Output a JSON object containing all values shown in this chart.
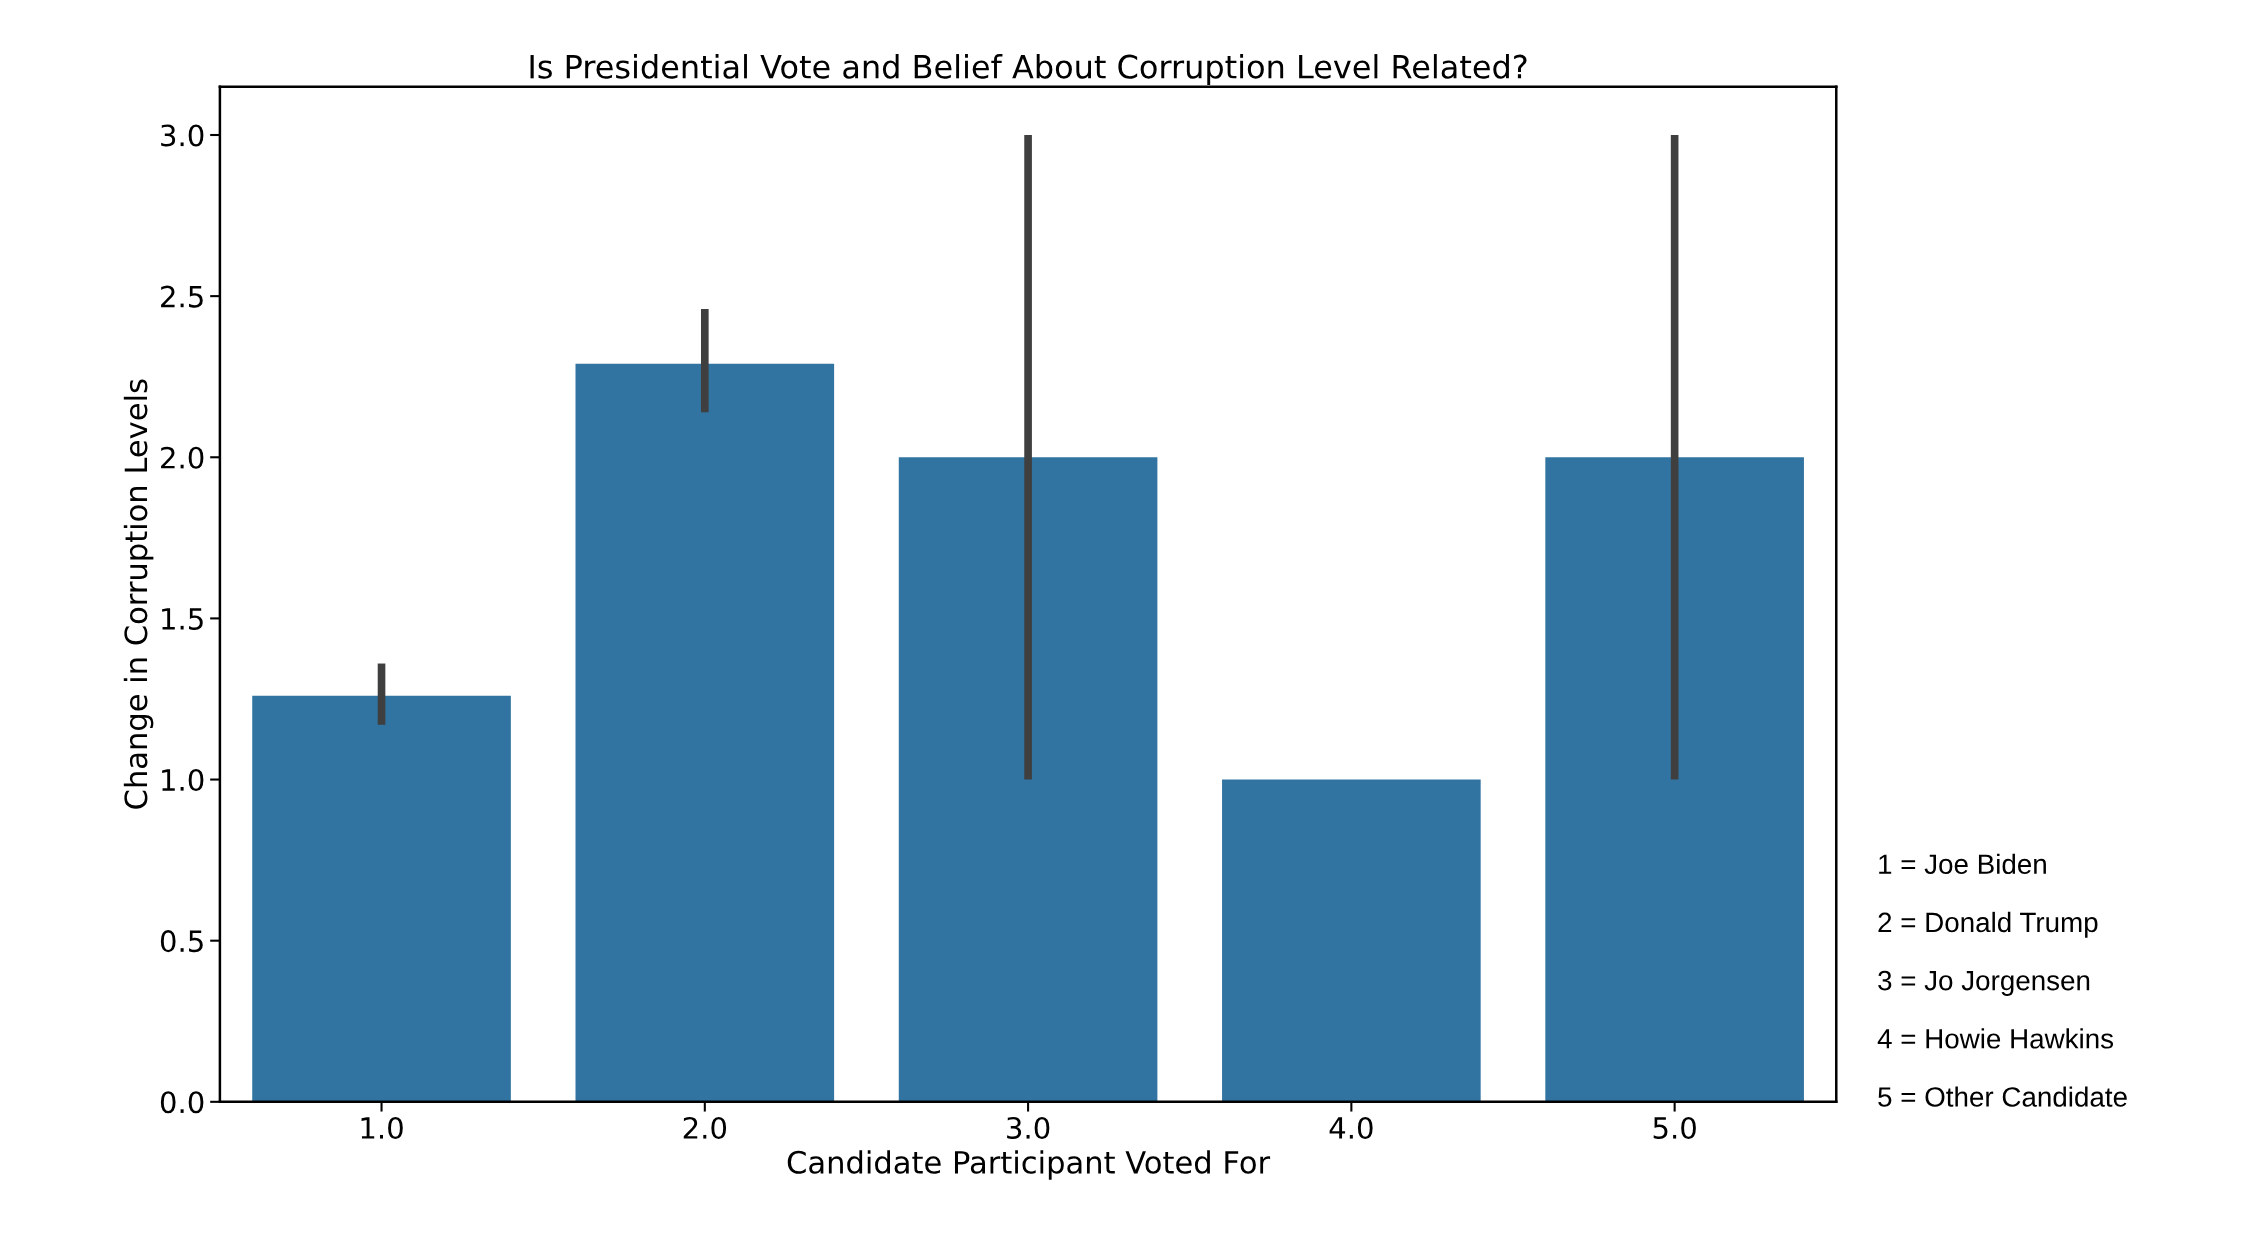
{
  "chart_data": {
    "type": "bar",
    "title": "Is Presidential Vote and Belief About Corruption Level Related?",
    "xlabel": "Candidate Participant Voted For",
    "ylabel": "Change in Corruption Levels",
    "categories": [
      "1.0",
      "2.0",
      "3.0",
      "4.0",
      "5.0"
    ],
    "values": [
      1.26,
      2.29,
      2.0,
      1.0,
      2.0
    ],
    "errors": [
      [
        1.17,
        1.36
      ],
      [
        2.14,
        2.46
      ],
      [
        1.0,
        3.0
      ],
      null,
      [
        1.0,
        3.0
      ]
    ],
    "color": "#3274a1",
    "ylim": [
      0,
      3.15
    ],
    "yticks": [
      {
        "value": 0,
        "label": "0.0"
      },
      {
        "value": 0.5,
        "label": "0.5"
      },
      {
        "value": 1,
        "label": "1.0"
      },
      {
        "value": 1.5,
        "label": "1.5"
      },
      {
        "value": 2,
        "label": "2.0"
      },
      {
        "value": 2.5,
        "label": "2.5"
      },
      {
        "value": 3,
        "label": "3.0"
      }
    ],
    "grid": false,
    "legend": false,
    "annotations": [
      "1 = Joe Biden",
      "2 = Donald Trump",
      "3 = Jo Jorgensen",
      "4 = Howie Hawkins",
      "5 = Other Candidate"
    ]
  }
}
